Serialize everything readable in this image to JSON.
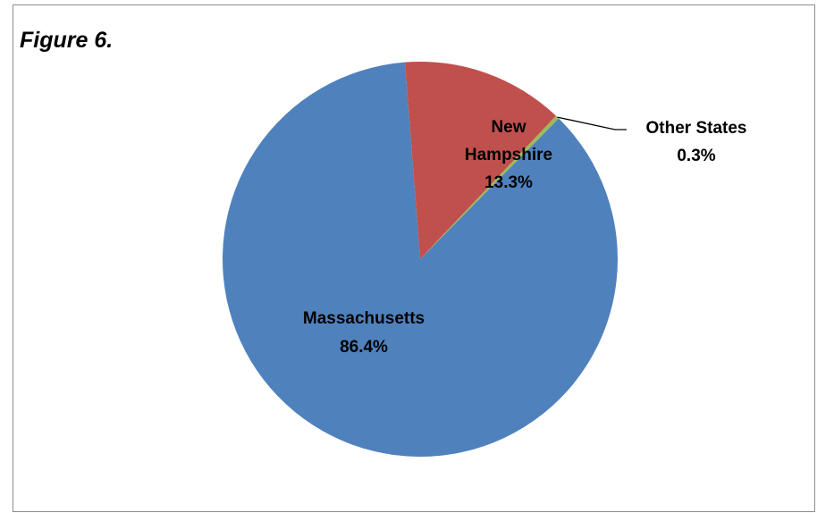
{
  "figure": {
    "title": "Figure 6."
  },
  "chart_data": {
    "type": "pie",
    "title": "",
    "slices": [
      {
        "label": "Massachusetts",
        "value": 86.4,
        "display": "86.4%",
        "color": "#4F81BD"
      },
      {
        "label": "New Hampshire",
        "line1": "New",
        "line2": "Hampshire",
        "value": 13.3,
        "display": "13.3%",
        "color": "#C0504D"
      },
      {
        "label": "Other States",
        "value": 0.3,
        "display": "0.3%",
        "color": "#9BBB59"
      }
    ],
    "legend": "none",
    "data_labels": "category name and percentage"
  }
}
